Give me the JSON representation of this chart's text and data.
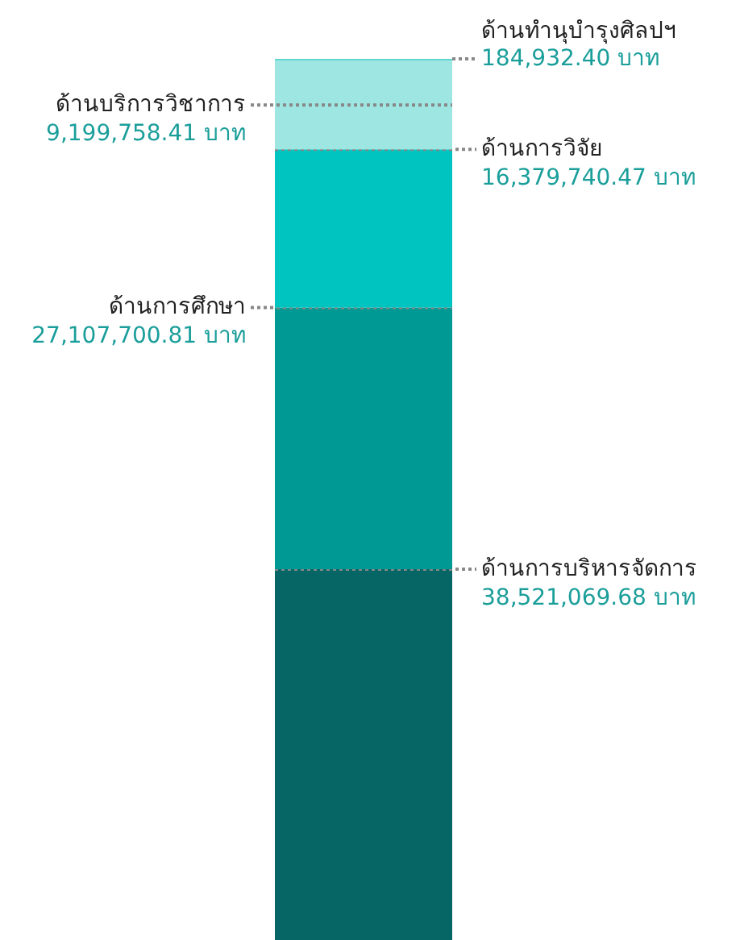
{
  "chart_data": {
    "type": "bar",
    "stacked": true,
    "categories": [
      null
    ],
    "data_labels": true,
    "series": [
      {
        "name": "ด้านการบริหารจัดการ",
        "color": "#066666",
        "values": [
          38521069.68
        ],
        "value_labels": [
          "38,521,069.68 บาท"
        ]
      },
      {
        "name": "ด้านการศึกษา",
        "color": "#009994",
        "values": [
          27107700.81
        ],
        "value_labels": [
          "27,107,700.81 บาท"
        ]
      },
      {
        "name": "ด้านการวิจัย",
        "color": "#00c4bf",
        "values": [
          16379740.47
        ],
        "value_labels": [
          "16,379,740.47 บาท"
        ]
      },
      {
        "name": "ด้านบริการวิชาการ",
        "color": "#9ee6e2",
        "values": [
          9199758.41
        ],
        "value_labels": [
          "9,199,758.41 บาท"
        ]
      },
      {
        "name": "ด้านทำนุบำรุงศิลปฯ",
        "color": "#5fd6d0",
        "values": [
          184932.4
        ],
        "value_labels": [
          "184,932.40 บาท"
        ]
      }
    ]
  }
}
